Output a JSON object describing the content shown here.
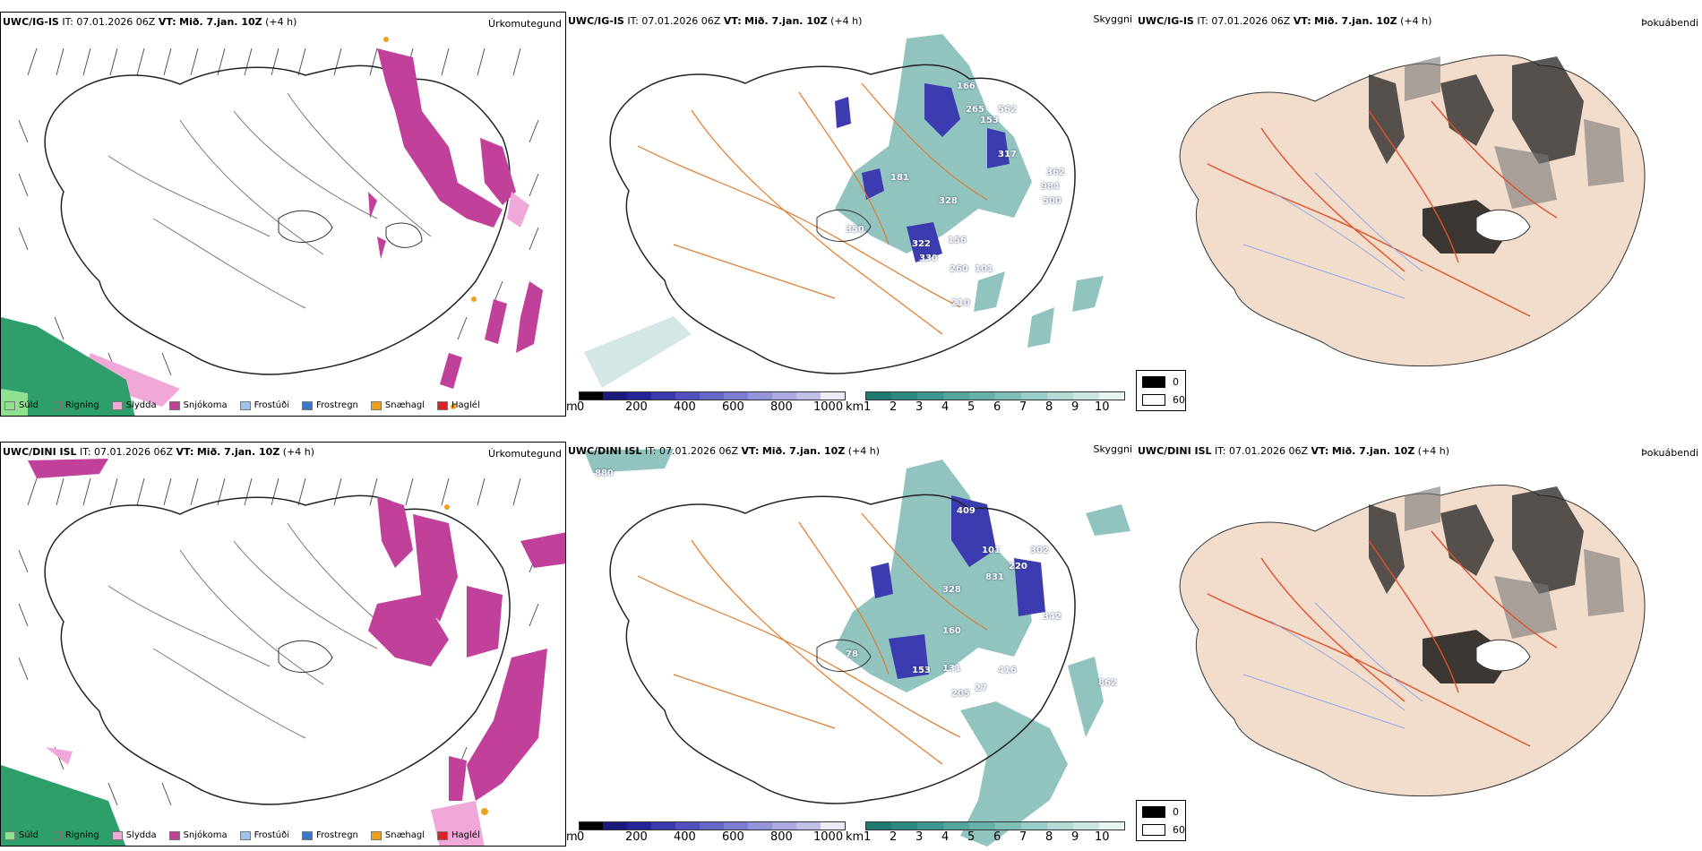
{
  "rows": [
    {
      "model": "UWC/IG-IS",
      "it_label": "IT:",
      "it_value": "07.01.2026 06Z",
      "vt_label": "VT:",
      "vt_value": "Mið. 7.jan. 10Z",
      "lead": "(+4 h)",
      "labels": [
        "166",
        "265",
        "153",
        "562",
        "317",
        "362",
        "984",
        "500",
        "181",
        "328",
        "156",
        "350",
        "322",
        "330",
        "260",
        "101",
        "210"
      ]
    },
    {
      "model": "UWC/DINI ISL",
      "it_label": "IT:",
      "it_value": "07.01.2026 06Z",
      "vt_label": "VT:",
      "vt_value": "Mið. 7.jan. 10Z",
      "lead": "(+4 h)",
      "labels": [
        "409",
        "101",
        "220",
        "831",
        "302",
        "342",
        "328",
        "160",
        "153",
        "131",
        "205",
        "27",
        "416",
        "862",
        "78",
        "880"
      ]
    }
  ],
  "panel_titles": {
    "precip": "Úrkomutegund",
    "cloud": "Skyggni",
    "fog": "Þokuábendi"
  },
  "precip_legend": [
    {
      "label": "Súld",
      "color": "#8fe08f"
    },
    {
      "label": "Rigning",
      "color": "#2e9e6a"
    },
    {
      "label": "Slydda",
      "color": "#f0a8d8"
    },
    {
      "label": "Snjókoma",
      "color": "#c0409a"
    },
    {
      "label": "Frostúði",
      "color": "#9cc4f0"
    },
    {
      "label": "Frostregn",
      "color": "#3a78c8"
    },
    {
      "label": "Snæhagl",
      "color": "#f0a020"
    },
    {
      "label": "Haglél",
      "color": "#e02020"
    }
  ],
  "cloud_base_bar": {
    "unit": "m",
    "ticks": [
      "0",
      "200",
      "400",
      "600",
      "800",
      "1000"
    ],
    "colors": [
      "#000000",
      "#1a1a7a",
      "#25259a",
      "#3a3ab0",
      "#5050c0",
      "#6666c8",
      "#7c7cd0",
      "#9494d8",
      "#aaaae0",
      "#c0c0e8",
      "#d6d6f0",
      "#ececf8"
    ]
  },
  "visibility_bar": {
    "unit": "km",
    "ticks": [
      "1",
      "2",
      "3",
      "4",
      "5",
      "6",
      "7",
      "8",
      "9",
      "10"
    ],
    "colors": [
      "#1f7a72",
      "#2d8a82",
      "#3e978f",
      "#52a49c",
      "#68b1a9",
      "#80bfb8",
      "#99cdc7",
      "#b3dbd6",
      "#ccE8e4",
      "#e6f4f2"
    ]
  },
  "fog_legend": [
    {
      "label": "0",
      "color": "#000000"
    },
    {
      "label": "60",
      "color": "#ffffff"
    }
  ]
}
